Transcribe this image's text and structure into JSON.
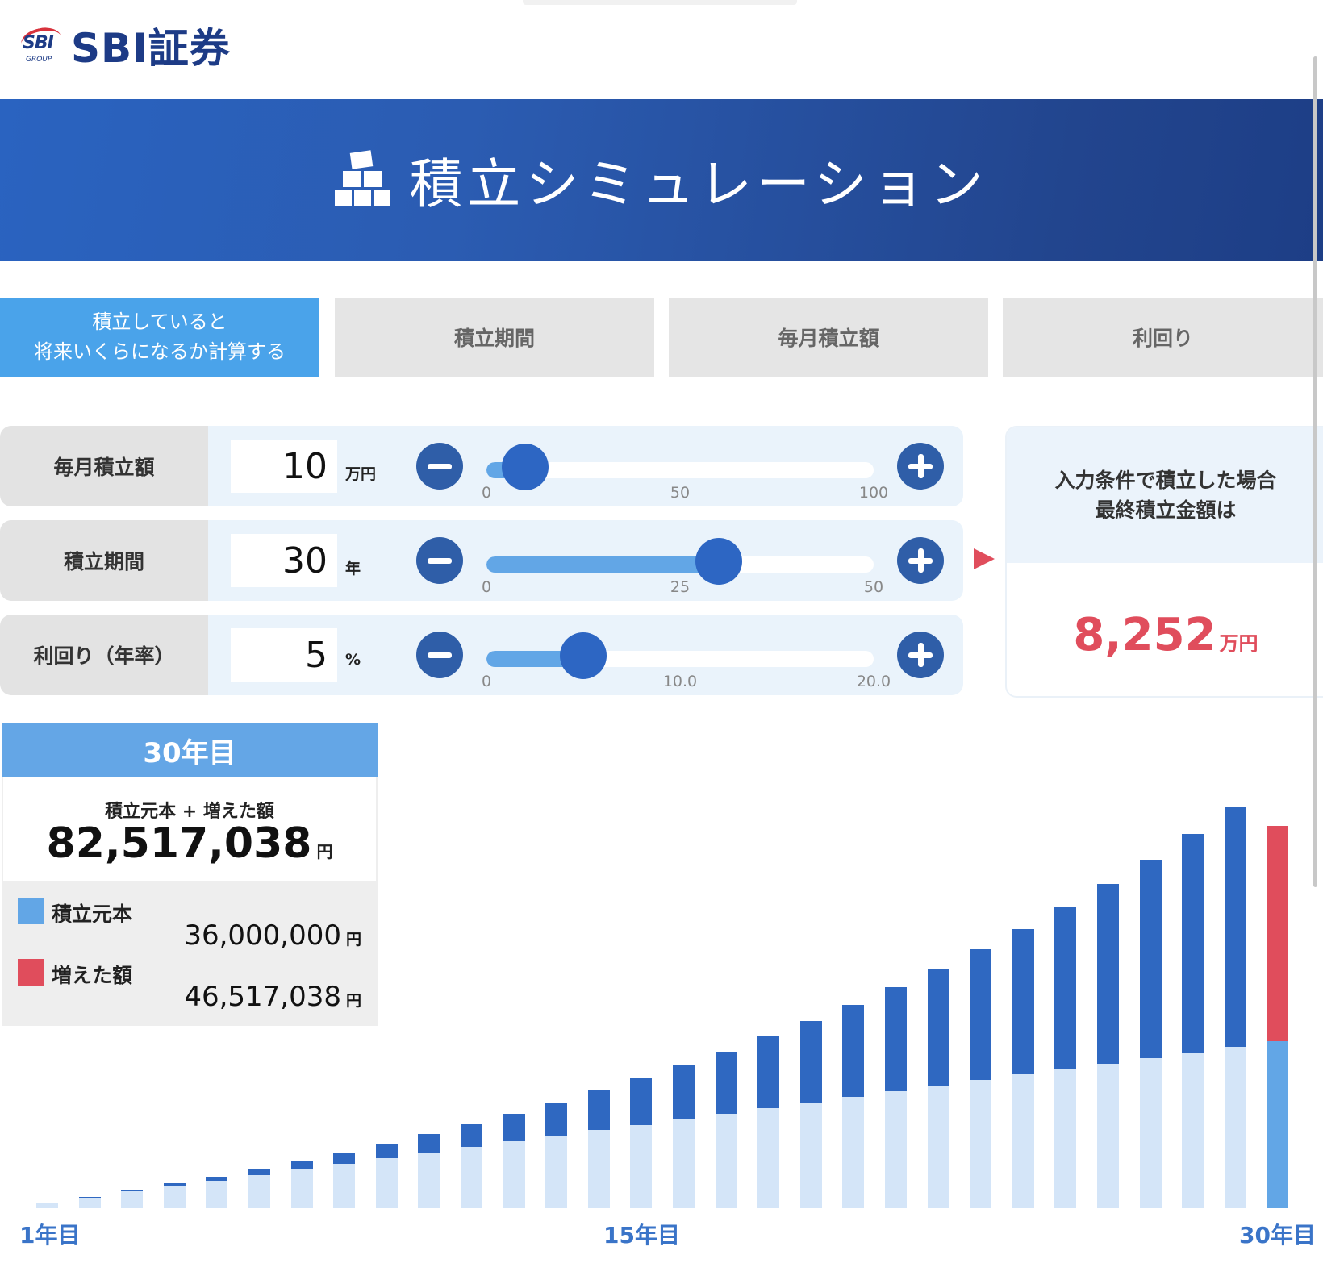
{
  "header": {
    "logo_badge": "SBI",
    "logo_group": "GROUP",
    "logo_text": "SBI証券"
  },
  "banner": {
    "title": "積立シミュレーション"
  },
  "tabs": [
    {
      "label_line1": "積立していると",
      "label_line2": "将来いくらになるか計算する",
      "active": true
    },
    {
      "label": "積立期間",
      "active": false
    },
    {
      "label": "毎月積立額",
      "active": false
    },
    {
      "label": "利回り",
      "active": false
    }
  ],
  "controls": [
    {
      "label": "毎月積立額",
      "value": "10",
      "unit": "万円",
      "min": 0,
      "max": 100,
      "current": 10,
      "ticks": [
        "0",
        "50",
        "100"
      ]
    },
    {
      "label": "積立期間",
      "value": "30",
      "unit": "年",
      "min": 0,
      "max": 50,
      "current": 30,
      "ticks": [
        "0",
        "25",
        "50"
      ]
    },
    {
      "label": "利回り（年率）",
      "value": "5",
      "unit": "%",
      "min": 0,
      "max": 20,
      "current": 5,
      "ticks": [
        "0",
        "10.0",
        "20.0"
      ]
    }
  ],
  "result": {
    "heading_line1": "入力条件で積立した場合",
    "heading_line2": "最終積立金額は",
    "value": "8,252",
    "unit": "万円"
  },
  "summary": {
    "year_title": "30年目",
    "total_label": "積立元本 + 増えた額",
    "total_value": "82,517,038",
    "total_unit": "円",
    "principal_label": "積立元本",
    "principal_value": "36,000,000",
    "principal_unit": "円",
    "gain_label": "増えた額",
    "gain_value": "46,517,038",
    "gain_unit": "円"
  },
  "colors": {
    "accent": "#4aa3ea",
    "banner": "#2a5bb3",
    "button": "#2f5ea8",
    "principal_light": "#d4e5f8",
    "principal_highlight": "#62a6e6",
    "gain": "#2f68c1",
    "gain_highlight": "#e04d5c",
    "result_red": "#e04d5c"
  },
  "chart_data": {
    "type": "bar",
    "stacked": true,
    "x_labels_shown": [
      "1年目",
      "15年目",
      "30年目"
    ],
    "categories": [
      "1",
      "2",
      "3",
      "4",
      "5",
      "6",
      "7",
      "8",
      "9",
      "10",
      "11",
      "12",
      "13",
      "14",
      "15",
      "16",
      "17",
      "18",
      "19",
      "20",
      "21",
      "22",
      "23",
      "24",
      "25",
      "26",
      "27",
      "28",
      "29",
      "30"
    ],
    "series": [
      {
        "name": "積立元本",
        "values": [
          120,
          240,
          360,
          480,
          600,
          720,
          840,
          960,
          1080,
          1200,
          1320,
          1440,
          1560,
          1680,
          1800,
          1920,
          2040,
          2160,
          2280,
          2400,
          2520,
          2640,
          2760,
          2880,
          3000,
          3120,
          3240,
          3360,
          3480,
          3600
        ]
      },
      {
        "name": "増えた額",
        "values": [
          3,
          12,
          29,
          53,
          86,
          128,
          180,
          241,
          313,
          396,
          491,
          598,
          718,
          852,
          1000,
          1163,
          1343,
          1539,
          1755,
          1989,
          2244,
          2521,
          2821,
          3145,
          3496,
          3873,
          4281,
          4719,
          5191,
          4652
        ]
      }
    ],
    "unit": "万円",
    "highlight_index": 29
  }
}
